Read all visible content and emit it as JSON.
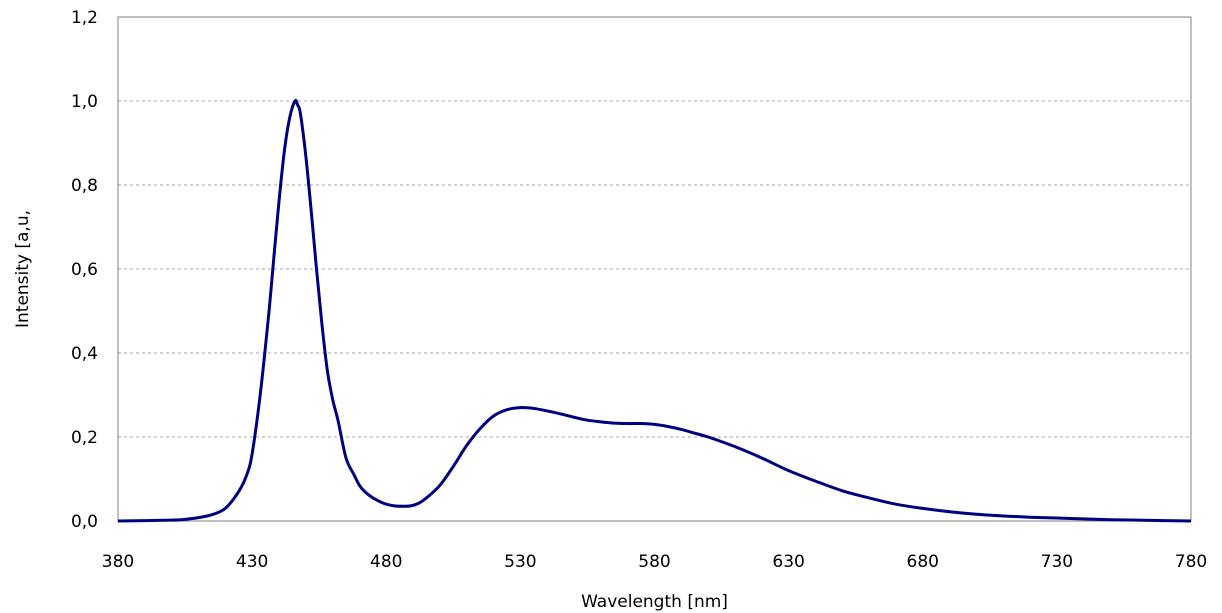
{
  "chart_data": {
    "type": "line",
    "title": "",
    "xlabel": "Wavelength [nm]",
    "ylabel": "Intensity [a,u,",
    "xlim": [
      380,
      780
    ],
    "ylim": [
      0,
      1.2
    ],
    "x_ticks": [
      "380",
      "430",
      "480",
      "530",
      "580",
      "630",
      "680",
      "730",
      "780"
    ],
    "y_ticks": [
      "0,0",
      "0,2",
      "0,4",
      "0,6",
      "0,8",
      "1,0",
      "1,2"
    ],
    "grid": "horizontal dashed",
    "legend": "none",
    "series": [
      {
        "color": "#000080",
        "x": [
          380,
          400,
          405,
          410,
          415,
          420,
          425,
          428,
          430,
          433,
          436,
          438,
          440,
          442,
          444,
          446,
          447,
          448,
          450,
          452,
          454,
          456,
          458,
          460,
          462,
          465,
          468,
          470,
          472,
          475,
          478,
          480,
          483,
          486,
          489,
          492,
          495,
          500,
          505,
          510,
          515,
          520,
          525,
          530,
          535,
          540,
          545,
          550,
          555,
          560,
          565,
          570,
          575,
          580,
          585,
          590,
          595,
          600,
          610,
          620,
          630,
          640,
          650,
          660,
          670,
          680,
          690,
          700,
          710,
          720,
          730,
          740,
          750,
          760,
          770,
          780
        ],
        "y": [
          0.0,
          0.002,
          0.004,
          0.008,
          0.015,
          0.03,
          0.07,
          0.11,
          0.16,
          0.3,
          0.48,
          0.62,
          0.76,
          0.88,
          0.96,
          1.0,
          0.99,
          0.97,
          0.87,
          0.74,
          0.6,
          0.47,
          0.36,
          0.29,
          0.24,
          0.15,
          0.11,
          0.085,
          0.07,
          0.055,
          0.045,
          0.04,
          0.036,
          0.035,
          0.036,
          0.042,
          0.055,
          0.085,
          0.13,
          0.18,
          0.22,
          0.25,
          0.265,
          0.27,
          0.268,
          0.262,
          0.255,
          0.247,
          0.24,
          0.236,
          0.233,
          0.232,
          0.232,
          0.23,
          0.225,
          0.218,
          0.209,
          0.2,
          0.177,
          0.15,
          0.12,
          0.095,
          0.072,
          0.055,
          0.04,
          0.03,
          0.022,
          0.016,
          0.012,
          0.009,
          0.007,
          0.005,
          0.003,
          0.002,
          0.001,
          0.0
        ]
      }
    ]
  }
}
